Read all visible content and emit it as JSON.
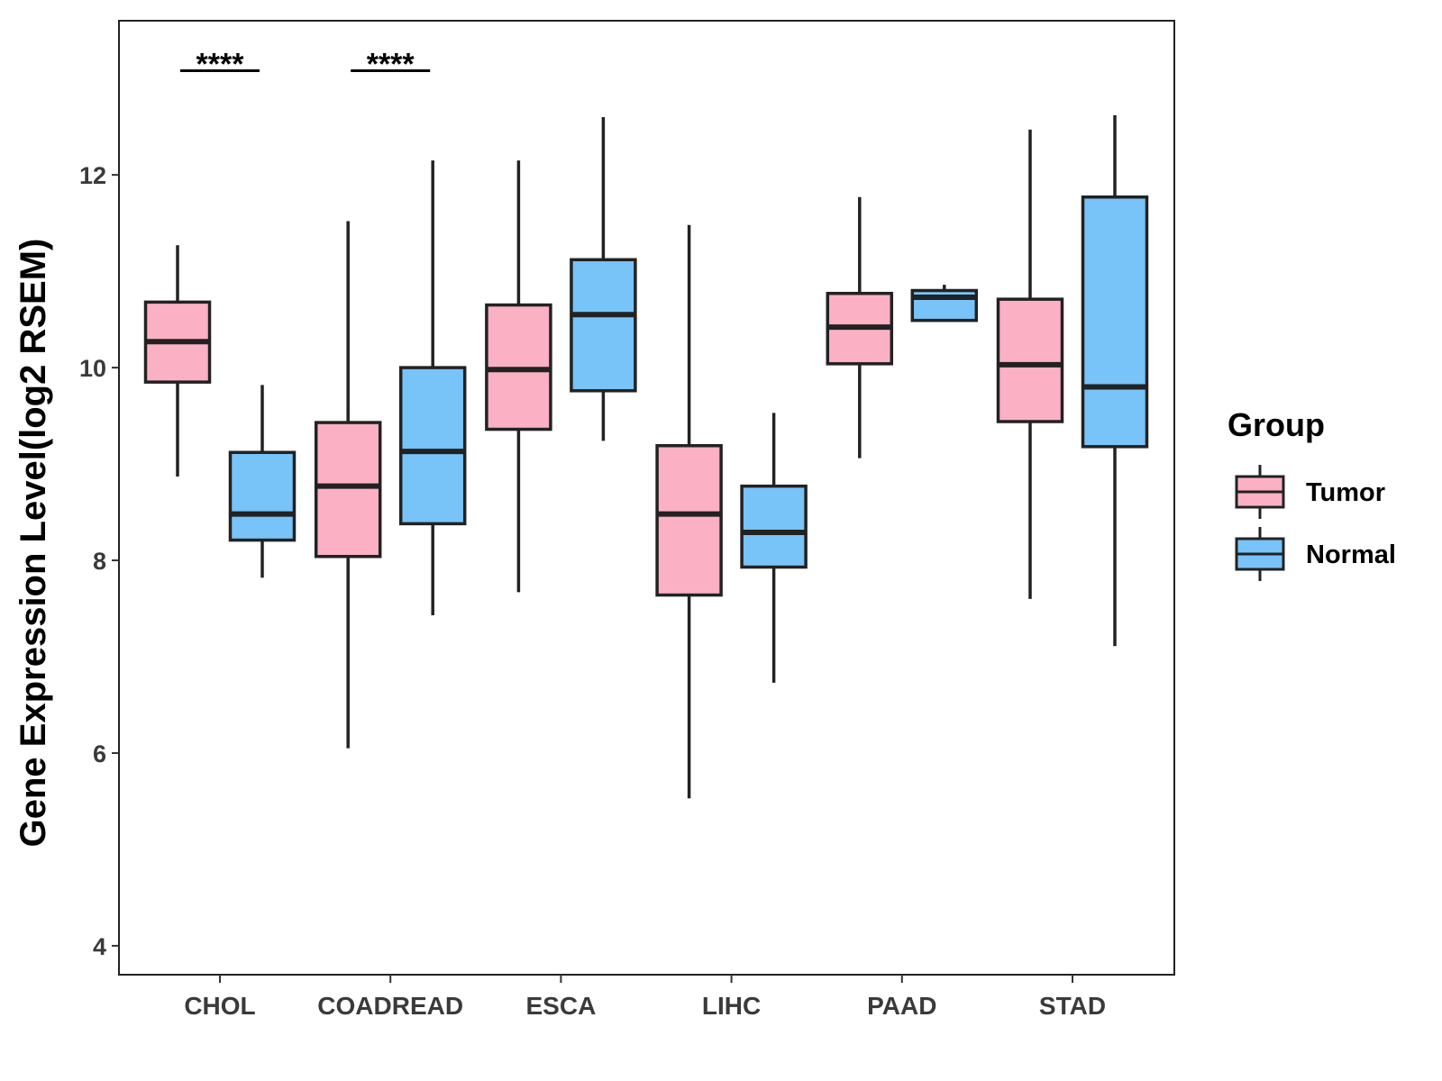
{
  "chart_data": {
    "type": "boxplot",
    "title": "",
    "xlabel": "",
    "ylabel": "Gene Expression Level(log2 RSEM)",
    "ylim": [
      3.7,
      13.6
    ],
    "yticks": [
      4,
      6,
      8,
      10,
      12
    ],
    "yticklabels": [
      "4",
      "6",
      "8",
      "10",
      "12"
    ],
    "categories": [
      "CHOL",
      "COADREAD",
      "ESCA",
      "LIHC",
      "PAAD",
      "STAD"
    ],
    "grid": false,
    "legend": {
      "title": "Group",
      "position": "right",
      "entries": [
        {
          "name": "Tumor",
          "color": "#FBB1C3"
        },
        {
          "name": "Normal",
          "color": "#78C3F8"
        }
      ]
    },
    "series": [
      {
        "name": "Tumor",
        "color": "#FBB1C3",
        "boxes": [
          {
            "category": "CHOL",
            "whisker_low": 8.87,
            "q1": 9.85,
            "median": 10.27,
            "q3": 10.68,
            "whisker_high": 11.27
          },
          {
            "category": "COADREAD",
            "whisker_low": 6.05,
            "q1": 8.04,
            "median": 8.77,
            "q3": 9.43,
            "whisker_high": 11.52
          },
          {
            "category": "ESCA",
            "whisker_low": 7.67,
            "q1": 9.36,
            "median": 9.98,
            "q3": 10.65,
            "whisker_high": 12.15
          },
          {
            "category": "LIHC",
            "whisker_low": 5.53,
            "q1": 7.64,
            "median": 8.48,
            "q3": 9.19,
            "whisker_high": 11.48
          },
          {
            "category": "PAAD",
            "whisker_low": 9.06,
            "q1": 10.04,
            "median": 10.42,
            "q3": 10.77,
            "whisker_high": 11.77
          },
          {
            "category": "STAD",
            "whisker_low": 7.6,
            "q1": 9.44,
            "median": 10.03,
            "q3": 10.71,
            "whisker_high": 12.47
          }
        ]
      },
      {
        "name": "Normal",
        "color": "#78C3F8",
        "boxes": [
          {
            "category": "CHOL",
            "whisker_low": 7.82,
            "q1": 8.21,
            "median": 8.48,
            "q3": 9.12,
            "whisker_high": 9.82
          },
          {
            "category": "COADREAD",
            "whisker_low": 7.43,
            "q1": 8.38,
            "median": 9.13,
            "q3": 10.0,
            "whisker_high": 12.15
          },
          {
            "category": "ESCA",
            "whisker_low": 9.24,
            "q1": 9.76,
            "median": 10.55,
            "q3": 11.12,
            "whisker_high": 12.6
          },
          {
            "category": "LIHC",
            "whisker_low": 6.73,
            "q1": 7.93,
            "median": 8.29,
            "q3": 8.77,
            "whisker_high": 9.53
          },
          {
            "category": "PAAD",
            "whisker_low": 10.49,
            "q1": 10.49,
            "median": 10.73,
            "q3": 10.8,
            "whisker_high": 10.86
          },
          {
            "category": "STAD",
            "whisker_low": 7.11,
            "q1": 9.18,
            "median": 9.8,
            "q3": 11.77,
            "whisker_high": 12.62
          }
        ]
      }
    ],
    "annotations": [
      {
        "category": "CHOL",
        "label": "****",
        "y": 13.1
      },
      {
        "category": "COADREAD",
        "label": "****",
        "y": 13.1
      }
    ]
  }
}
